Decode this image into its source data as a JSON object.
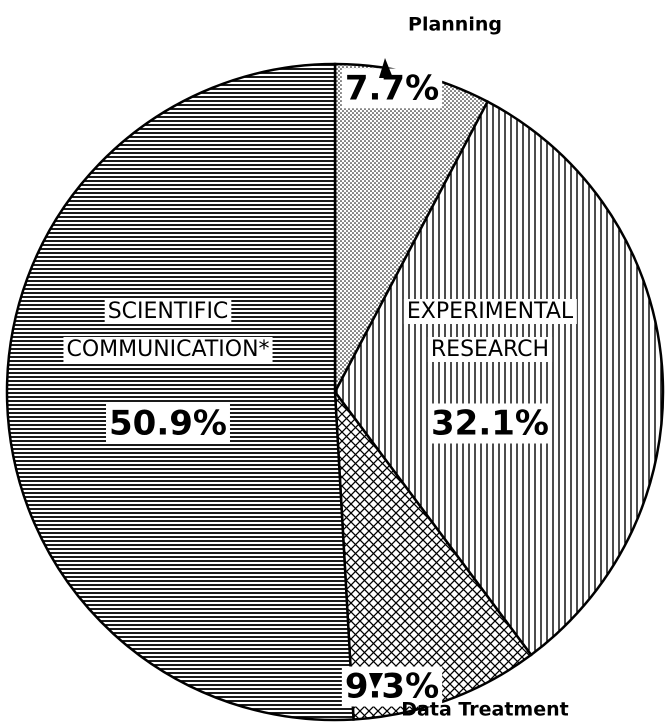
{
  "chart_data": {
    "type": "pie",
    "categories": [
      "Planning",
      "EXPERIMENTAL RESEARCH",
      "Data Treatment",
      "SCIENTIFIC COMMUNICATION*"
    ],
    "values": [
      7.7,
      32.1,
      9.3,
      50.9
    ],
    "value_labels": [
      "7.7%",
      "32.1%",
      "9.3%",
      "50.9%"
    ],
    "patterns": [
      "dots",
      "vertical",
      "crosshatch",
      "horizontal"
    ],
    "color": "#000000"
  }
}
